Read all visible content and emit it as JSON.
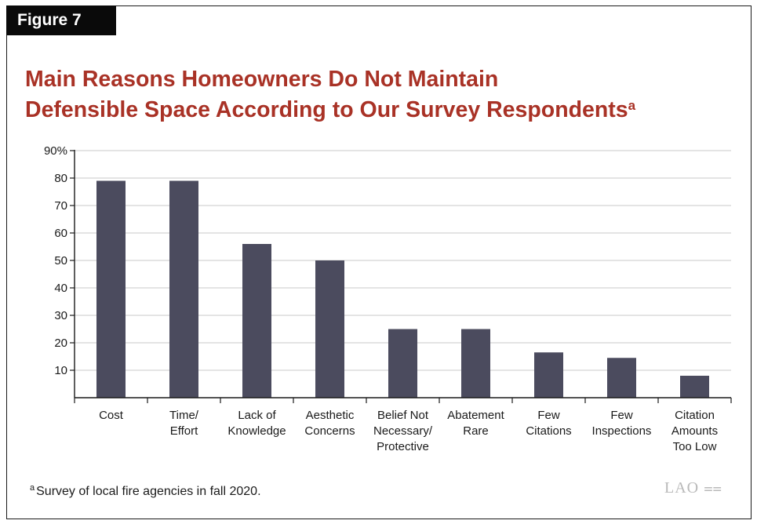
{
  "figure_label": "Figure 7",
  "title_line1": "Main Reasons Homeowners Do Not Maintain",
  "title_line2": "Defensible Space According to Our Survey Respondents",
  "title_superscript": "a",
  "footnote_marker": "a",
  "footnote_text": "Survey of local fire agencies in fall 2020.",
  "logo_text": "LAO",
  "colors": {
    "bar": "#4b4b5e",
    "title": "#a93226",
    "grid": "#c8c8c8"
  },
  "chart_data": {
    "type": "bar",
    "categories": [
      [
        "Cost"
      ],
      [
        "Time/",
        "Effort"
      ],
      [
        "Lack of",
        "Knowledge"
      ],
      [
        "Aesthetic",
        "Concerns"
      ],
      [
        "Belief Not",
        "Necessary/",
        "Protective"
      ],
      [
        "Abatement",
        "Rare"
      ],
      [
        "Few",
        "Citations"
      ],
      [
        "Few",
        "Inspections"
      ],
      [
        "Citation",
        "Amounts",
        "Too Low"
      ]
    ],
    "values": [
      79,
      79,
      56,
      50,
      25,
      25,
      16.5,
      14.5,
      8
    ],
    "ylim": [
      0,
      90
    ],
    "yticks": [
      10,
      20,
      30,
      40,
      50,
      60,
      70,
      80,
      90
    ],
    "ytick_labels": [
      "10",
      "20",
      "30",
      "40",
      "50",
      "60",
      "70",
      "80",
      "90%"
    ],
    "grid": true
  }
}
